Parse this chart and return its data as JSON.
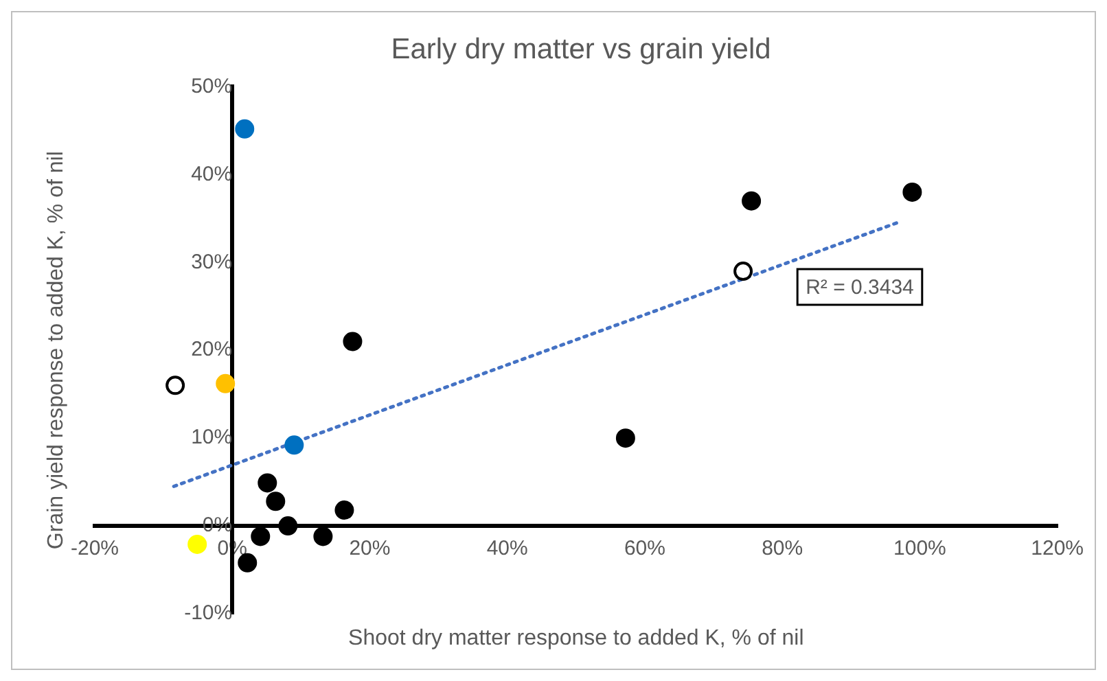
{
  "chart_data": {
    "type": "scatter",
    "title": "Early dry matter vs grain yield",
    "xlabel": "Shoot dry matter response to added K, % of nil",
    "ylabel": "Grain yield response to added K, % of nil",
    "xlim": [
      -20,
      120
    ],
    "xticks": [
      {
        "value": -20,
        "label": "-20%"
      },
      {
        "value": 0,
        "label": "0%"
      },
      {
        "value": 20,
        "label": "20%"
      },
      {
        "value": 40,
        "label": "40%"
      },
      {
        "value": 60,
        "label": "60%"
      },
      {
        "value": 80,
        "label": "80%"
      },
      {
        "value": 100,
        "label": "100%"
      },
      {
        "value": 120,
        "label": "120%"
      }
    ],
    "ylim": [
      -10,
      50
    ],
    "yticks": [
      {
        "value": -10,
        "label": "-10%"
      },
      {
        "value": 0,
        "label": "0%"
      },
      {
        "value": 10,
        "label": "10%"
      },
      {
        "value": 20,
        "label": "20%"
      },
      {
        "value": 30,
        "label": "30%"
      },
      {
        "value": 40,
        "label": "40%"
      },
      {
        "value": 50,
        "label": "50%"
      }
    ],
    "grid": false,
    "legend": false,
    "marker": "circle",
    "annotations": [
      "R² = 0.3434"
    ],
    "series": [
      {
        "color": "#000000",
        "x": [
          17.5,
          5.1,
          6.3,
          8.1,
          4.1,
          13.2,
          16.3,
          2.2,
          75.5,
          98.9,
          57.2
        ],
        "values": [
          21,
          4.9,
          2.8,
          0,
          -1.2,
          -1.2,
          1.8,
          -4.2,
          37,
          38,
          10
        ]
      },
      {
        "color": "#ffffff",
        "x": [
          -8.3,
          74.3
        ],
        "values": [
          16,
          29
        ]
      },
      {
        "color": "#0070c0",
        "x": [
          1.8,
          9.0
        ],
        "values": [
          45.2,
          9.2
        ]
      },
      {
        "color": "#ffc000",
        "x": [
          -1.0
        ],
        "values": [
          16.2
        ]
      },
      {
        "color": "#ffff00",
        "x": [
          -5.1
        ],
        "values": [
          -2.1
        ]
      },
      {
        "type": "line",
        "color": "#4472c4",
        "line_style": "dotted",
        "marker": "none",
        "x": [
          -8.5,
          97
        ],
        "values": [
          4.5,
          34.6
        ]
      }
    ]
  }
}
